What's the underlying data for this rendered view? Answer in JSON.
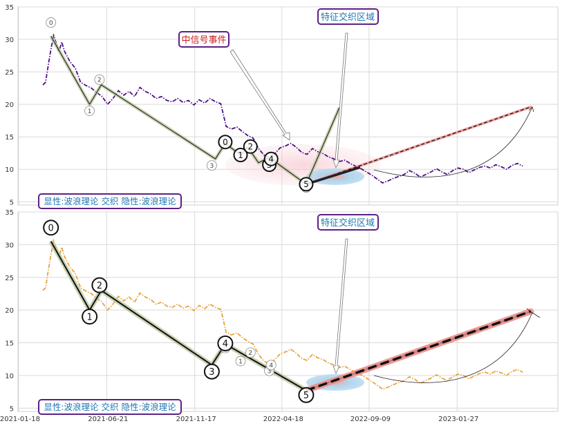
{
  "chart_data": [
    {
      "type": "line",
      "panel": "top",
      "ylim": [
        4.5,
        35
      ],
      "yticks": [
        "5",
        "10",
        "15",
        "20",
        "25",
        "30",
        "35"
      ],
      "series": [
        {
          "color": "#4b0f86",
          "style": "dash-dot",
          "x": [
            0,
            3,
            6,
            9,
            12,
            15,
            18,
            21,
            24,
            27,
            30,
            36,
            42,
            48,
            54,
            60,
            66,
            72,
            78,
            84,
            90,
            96,
            102,
            108,
            114,
            120,
            126,
            132,
            138,
            144,
            150,
            156,
            162,
            168,
            174,
            180,
            186,
            192,
            198,
            204,
            210,
            216,
            222,
            228,
            234,
            240,
            246,
            252,
            258,
            264,
            270,
            276,
            282,
            288,
            294,
            300,
            306,
            312,
            318,
            324,
            330,
            336,
            342,
            348,
            354,
            360,
            366,
            372,
            378,
            384,
            390,
            396,
            402,
            408,
            414,
            420,
            426,
            432,
            438,
            444,
            450,
            456,
            462,
            468,
            474,
            480,
            486,
            492,
            498,
            504,
            510,
            516,
            522,
            528,
            534
          ],
          "values": [
            23.0,
            23.4,
            26.0,
            28.5,
            30.6,
            29.4,
            28.1,
            29.6,
            28.2,
            27.4,
            26.6,
            25.6,
            23.4,
            22.9,
            22.5,
            21.8,
            21.2,
            20.0,
            20.9,
            22.1,
            21.4,
            22.0,
            21.2,
            22.6,
            22.0,
            21.6,
            20.9,
            21.2,
            20.6,
            20.4,
            20.9,
            20.3,
            20.6,
            19.9,
            20.7,
            20.2,
            20.9,
            20.4,
            20.1,
            16.6,
            16.2,
            16.5,
            15.8,
            15.2,
            14.8,
            13.2,
            12.2,
            11.8,
            12.4,
            13.3,
            13.6,
            14.0,
            13.4,
            12.6,
            12.3,
            13.2,
            12.7,
            12.4,
            11.9,
            11.6,
            11.2,
            11.4,
            10.9,
            10.5,
            10.1,
            9.6,
            9.1,
            8.5,
            7.9,
            8.2,
            8.6,
            8.9,
            9.2,
            9.8,
            9.4,
            8.8,
            9.2,
            9.6,
            10.1,
            9.6,
            9.2,
            9.8,
            10.2,
            10.0,
            9.5,
            9.9,
            10.3,
            10.5,
            10.2,
            10.7,
            10.4,
            10.0,
            10.6,
            10.9,
            10.5
          ]
        },
        {
          "name": "wave-path",
          "color": "#111111",
          "style": "solid",
          "x": [
            9,
            52,
            65,
            192,
            203,
            220,
            228,
            240,
            252,
            293,
            330
          ],
          "values": [
            30.5,
            20.0,
            23.0,
            11.6,
            14.0,
            12.2,
            13.4,
            11.0,
            11.8,
            7.7,
            19.5
          ]
        }
      ],
      "markers_primary": [
        {
          "label": "0",
          "x": 203,
          "y": 14.2
        },
        {
          "label": "1",
          "x": 220,
          "y": 12.2
        },
        {
          "label": "2",
          "x": 231,
          "y": 13.5
        },
        {
          "label": "3",
          "x": 252,
          "y": 10.7
        },
        {
          "label": "4",
          "x": 254,
          "y": 11.6
        },
        {
          "label": "5",
          "x": 293,
          "y": 7.7
        }
      ],
      "markers_secondary": [
        {
          "label": "0",
          "x": 9,
          "y": 32.6
        },
        {
          "label": "1",
          "x": 52,
          "y": 19.0
        },
        {
          "label": "2",
          "x": 63,
          "y": 23.8
        },
        {
          "label": "3",
          "x": 188,
          "y": 10.6
        },
        {
          "label": "5",
          "x": 293,
          "y": 7.2
        }
      ],
      "projection": {
        "x": [
          293,
          543
        ],
        "values": [
          7.7,
          19.6
        ]
      },
      "annotations": [
        {
          "text": "中信号事件",
          "color": "#c81e1e",
          "border": "#5c1f86"
        },
        {
          "text": "特征交织区域",
          "color": "#1f78b4",
          "border": "#5c1f86"
        }
      ],
      "footer_label": {
        "text": "显性:波浪理论 交织 隐性:波浪理论",
        "color": "#1f78b4",
        "border": "#5c1f86"
      },
      "grid": true
    },
    {
      "type": "line",
      "panel": "bottom",
      "ylim": [
        4.5,
        35
      ],
      "yticks": [
        "5",
        "10",
        "15",
        "20",
        "25",
        "30",
        "35"
      ],
      "xticks": [
        "2021-01-18",
        "2021-06-21",
        "2021-11-17",
        "2022-04-18",
        "2022-09-09",
        "2023-01-27"
      ],
      "series": [
        {
          "color": "#e8a33c",
          "style": "dash-dot",
          "x": [
            0,
            3,
            6,
            9,
            12,
            15,
            18,
            21,
            24,
            27,
            30,
            36,
            42,
            48,
            54,
            60,
            66,
            72,
            78,
            84,
            90,
            96,
            102,
            108,
            114,
            120,
            126,
            132,
            138,
            144,
            150,
            156,
            162,
            168,
            174,
            180,
            186,
            192,
            198,
            204,
            210,
            216,
            222,
            228,
            234,
            240,
            246,
            252,
            258,
            264,
            270,
            276,
            282,
            288,
            294,
            300,
            306,
            312,
            318,
            324,
            330,
            336,
            342,
            348,
            354,
            360,
            366,
            372,
            378,
            384,
            390,
            396,
            402,
            408,
            414,
            420,
            426,
            432,
            438,
            444,
            450,
            456,
            462,
            468,
            474,
            480,
            486,
            492,
            498,
            504,
            510,
            516,
            522,
            528,
            534
          ],
          "values": [
            23.0,
            23.4,
            26.0,
            28.5,
            30.6,
            29.4,
            28.1,
            29.6,
            28.2,
            27.4,
            26.6,
            25.6,
            23.4,
            22.9,
            22.5,
            21.8,
            21.2,
            20.0,
            20.9,
            22.1,
            21.4,
            22.0,
            21.2,
            22.6,
            22.0,
            21.6,
            20.9,
            21.2,
            20.6,
            20.4,
            20.9,
            20.3,
            20.6,
            19.9,
            20.7,
            20.2,
            20.9,
            20.4,
            20.1,
            16.6,
            16.2,
            16.5,
            15.8,
            15.2,
            14.8,
            13.2,
            12.2,
            11.8,
            12.4,
            13.3,
            13.6,
            14.0,
            13.4,
            12.6,
            12.3,
            13.2,
            12.7,
            12.4,
            11.9,
            11.6,
            11.2,
            11.4,
            10.9,
            10.5,
            10.1,
            9.6,
            9.1,
            8.5,
            7.9,
            8.2,
            8.6,
            8.9,
            9.2,
            9.8,
            9.4,
            8.8,
            9.2,
            9.6,
            10.1,
            9.6,
            9.2,
            9.8,
            10.2,
            10.0,
            9.5,
            9.9,
            10.3,
            10.5,
            10.2,
            10.7,
            10.4,
            10.0,
            10.6,
            10.9,
            10.5
          ]
        },
        {
          "name": "wave-path",
          "color": "#111111",
          "style": "solid",
          "x": [
            9,
            52,
            65,
            188,
            203,
            293,
            543
          ],
          "values": [
            30.5,
            20.0,
            23.0,
            11.6,
            14.8,
            7.7,
            19.8
          ]
        }
      ],
      "markers_primary": [
        {
          "label": "0",
          "x": 9,
          "y": 32.6
        },
        {
          "label": "1",
          "x": 52,
          "y": 19.0
        },
        {
          "label": "2",
          "x": 63,
          "y": 23.8
        },
        {
          "label": "3",
          "x": 188,
          "y": 10.6
        },
        {
          "label": "4",
          "x": 203,
          "y": 14.9
        },
        {
          "label": "5",
          "x": 293,
          "y": 7.0
        }
      ],
      "markers_secondary": [
        {
          "label": "0",
          "x": 203,
          "y": 14.2
        },
        {
          "label": "1",
          "x": 220,
          "y": 12.2
        },
        {
          "label": "2",
          "x": 231,
          "y": 13.5
        },
        {
          "label": "3",
          "x": 252,
          "y": 10.7
        },
        {
          "label": "4",
          "x": 254,
          "y": 11.6
        }
      ],
      "projection": {
        "x": [
          293,
          543
        ],
        "values": [
          7.7,
          19.8
        ]
      },
      "annotations": [
        {
          "text": "特征交织区域",
          "color": "#1f78b4",
          "border": "#5c1f86"
        }
      ],
      "footer_label": {
        "text": "显性:波浪理论 交织 隐性:波浪理论",
        "color": "#1f78b4",
        "border": "#5c1f86"
      },
      "grid": true
    }
  ]
}
